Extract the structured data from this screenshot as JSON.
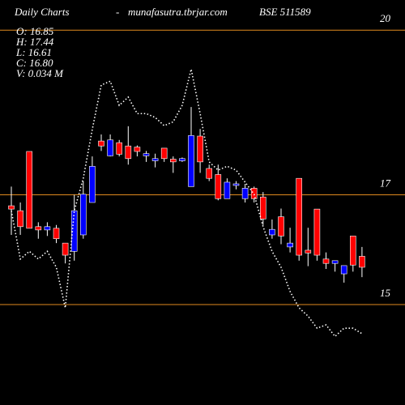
{
  "chart_data": {
    "type": "candlestick",
    "title": "Daily Charts",
    "separator": "-",
    "site": "munafasutra.tbrjar.com",
    "symbol": "BSE 511589",
    "info": [
      "O: 16.85",
      "H: 17.44",
      "L: 16.61",
      "C: 16.80",
      "V: 0.034  M"
    ],
    "ylim": [
      13.17,
      20.55
    ],
    "yticks": [
      15,
      17,
      20
    ],
    "grid_color": "#e08a1e",
    "up_color": "#0000ff",
    "down_color": "#ff0000",
    "open": [
      16.8,
      16.71,
      17.79,
      16.42,
      16.36,
      16.39,
      16.12,
      15.97,
      16.27,
      16.86,
      17.98,
      17.71,
      17.95,
      17.89,
      17.87,
      17.71,
      17.62,
      17.85,
      17.65,
      17.62,
      17.15,
      18.07,
      17.48,
      17.37,
      16.93,
      17.17,
      16.93,
      17.12,
      16.96,
      16.27,
      16.6,
      16.05,
      17.3,
      15.99,
      16.74,
      15.83,
      15.75,
      15.56,
      16.25,
      15.88
    ],
    "high": [
      17.15,
      16.86,
      17.79,
      16.5,
      16.5,
      16.45,
      16.12,
      17.0,
      17.25,
      17.7,
      18.1,
      18.1,
      18.0,
      18.25,
      17.9,
      17.8,
      17.75,
      17.85,
      17.7,
      17.68,
      18.6,
      18.2,
      17.55,
      17.55,
      17.3,
      17.25,
      17.2,
      17.15,
      17.05,
      16.55,
      16.75,
      16.4,
      17.3,
      16.4,
      16.74,
      15.95,
      15.8,
      15.71,
      16.25,
      16.05
    ],
    "low": [
      16.27,
      16.27,
      16.39,
      16.2,
      16.25,
      16.12,
      15.75,
      15.8,
      16.2,
      16.86,
      17.8,
      17.7,
      17.7,
      17.55,
      17.7,
      17.6,
      17.5,
      17.6,
      17.4,
      17.6,
      17.15,
      17.4,
      17.25,
      16.9,
      16.93,
      17.1,
      16.86,
      16.86,
      16.45,
      16.2,
      16.1,
      15.95,
      15.8,
      15.7,
      15.8,
      15.65,
      15.6,
      15.4,
      15.6,
      15.5
    ],
    "close": [
      16.74,
      16.42,
      16.39,
      16.36,
      16.42,
      16.2,
      15.9,
      16.71,
      17.01,
      17.52,
      17.89,
      18.0,
      17.74,
      17.66,
      17.79,
      17.75,
      17.66,
      17.66,
      17.6,
      17.66,
      18.08,
      17.6,
      17.3,
      16.93,
      17.23,
      17.2,
      17.12,
      16.93,
      16.56,
      16.37,
      16.25,
      16.12,
      15.9,
      15.94,
      15.9,
      15.75,
      15.8,
      15.71,
      15.72,
      15.68
    ],
    "line": {
      "color": "#ffffff",
      "values": [
        16.71,
        15.83,
        15.97,
        15.83,
        15.97,
        15.68,
        14.94,
        16.71,
        17.3,
        18.19,
        19.0,
        19.07,
        18.63,
        18.78,
        18.48,
        18.48,
        18.41,
        18.26,
        18.33,
        18.63,
        19.29,
        18.48,
        17.6,
        17.45,
        17.52,
        17.45,
        17.23,
        17.01,
        16.42,
        15.97,
        15.68,
        15.24,
        14.94,
        14.79,
        14.57,
        14.63,
        14.42,
        14.57,
        14.57,
        14.47
      ]
    }
  }
}
